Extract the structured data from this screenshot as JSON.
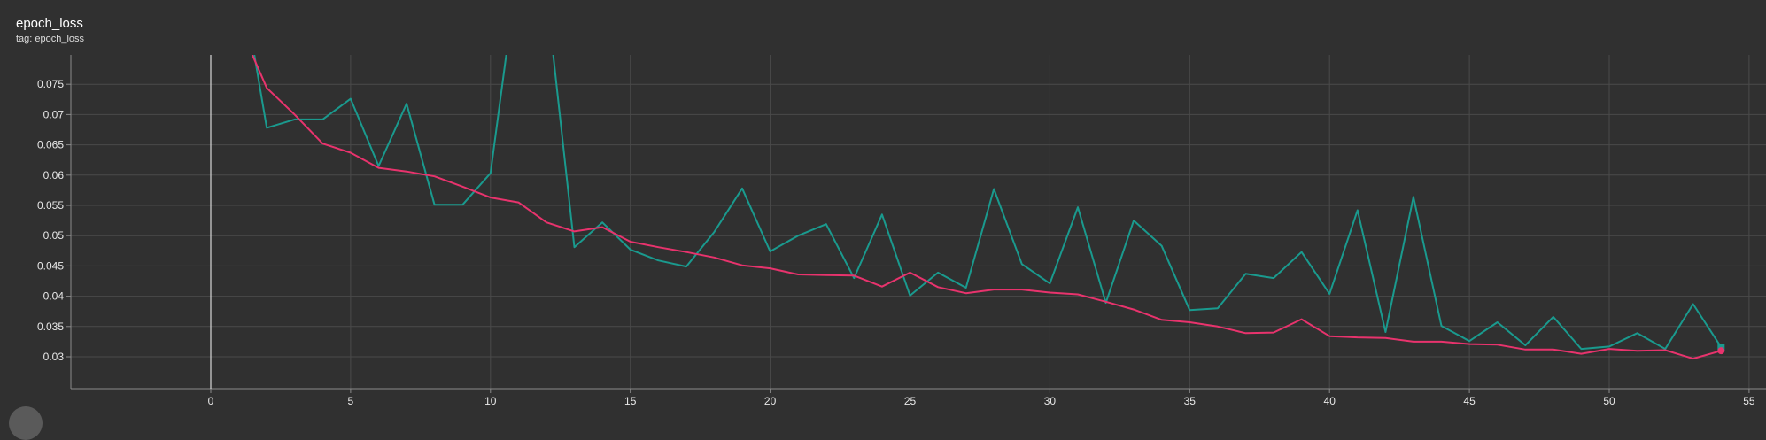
{
  "header": {
    "title": "epoch_loss",
    "subtitle": "tag: epoch_loss"
  },
  "colors": {
    "background": "#303030",
    "series_raw": "#1a9a8e",
    "series_smoothed": "#e8336d"
  },
  "chart_data": {
    "type": "line",
    "title": "epoch_loss",
    "subtitle": "tag: epoch_loss",
    "xlabel": "",
    "ylabel": "",
    "xlim": [
      -5,
      55.5
    ],
    "ylim": [
      0.0275,
      0.0775
    ],
    "x_ticks": [
      0,
      5,
      10,
      15,
      20,
      25,
      30,
      35,
      40,
      45,
      50,
      55
    ],
    "y_ticks": [
      0.03,
      0.035,
      0.04,
      0.045,
      0.05,
      0.055,
      0.06,
      0.065,
      0.07,
      0.075
    ],
    "y_tick_labels": [
      "0.03",
      "0.035",
      "0.04",
      "0.045",
      "0.05",
      "0.055",
      "0.06",
      "0.065",
      "0.07",
      "0.075"
    ],
    "grid": true,
    "legend": "none",
    "series": [
      {
        "color": "#1a9a8e",
        "x": [
          1,
          2,
          3,
          4,
          5,
          6,
          7,
          8,
          9,
          10,
          11,
          12,
          13,
          14,
          15,
          16,
          17,
          18,
          19,
          20,
          21,
          22,
          23,
          24,
          25,
          26,
          27,
          28,
          29,
          30,
          31,
          32,
          33,
          34,
          35,
          36,
          37,
          38,
          39,
          40,
          41,
          42,
          43,
          44,
          45,
          46,
          47,
          48,
          49,
          50,
          51,
          52,
          53,
          54
        ],
        "values": [
          0.095,
          0.0678,
          0.0692,
          0.0692,
          0.0726,
          0.0615,
          0.0718,
          0.0551,
          0.0551,
          0.0603,
          0.095,
          0.09,
          0.0481,
          0.0522,
          0.0477,
          0.0459,
          0.0449,
          0.0506,
          0.0578,
          0.0474,
          0.05,
          0.0519,
          0.043,
          0.0535,
          0.0401,
          0.0439,
          0.0414,
          0.0577,
          0.0453,
          0.0421,
          0.0547,
          0.0389,
          0.0525,
          0.0483,
          0.0377,
          0.038,
          0.0437,
          0.043,
          0.0473,
          0.0404,
          0.0542,
          0.0341,
          0.0564,
          0.0351,
          0.0326,
          0.0357,
          0.0319,
          0.0366,
          0.0313,
          0.0317,
          0.0339,
          0.0313,
          0.0387,
          0.0316
        ]
      },
      {
        "color": "#e8336d",
        "x": [
          1,
          2,
          3,
          4,
          5,
          6,
          7,
          8,
          9,
          10,
          11,
          12,
          13,
          14,
          15,
          16,
          17,
          18,
          19,
          20,
          21,
          22,
          23,
          24,
          25,
          26,
          27,
          28,
          29,
          30,
          31,
          32,
          33,
          34,
          35,
          36,
          37,
          38,
          39,
          40,
          41,
          42,
          43,
          44,
          45,
          46,
          47,
          48,
          49,
          50,
          51,
          52,
          53,
          54
        ],
        "values": [
          0.085,
          0.0744,
          0.07,
          0.0652,
          0.0637,
          0.0612,
          0.0606,
          0.0598,
          0.0581,
          0.0563,
          0.0555,
          0.0522,
          0.0507,
          0.0514,
          0.049,
          0.0481,
          0.0473,
          0.0464,
          0.0451,
          0.0446,
          0.0436,
          0.0435,
          0.0434,
          0.0416,
          0.0439,
          0.0415,
          0.0405,
          0.0411,
          0.0411,
          0.0406,
          0.0403,
          0.0391,
          0.0378,
          0.0361,
          0.0357,
          0.035,
          0.0339,
          0.034,
          0.0362,
          0.0334,
          0.0332,
          0.0331,
          0.0325,
          0.0325,
          0.0321,
          0.032,
          0.0312,
          0.0312,
          0.0305,
          0.0313,
          0.031,
          0.0311,
          0.0297,
          0.031
        ]
      }
    ]
  }
}
